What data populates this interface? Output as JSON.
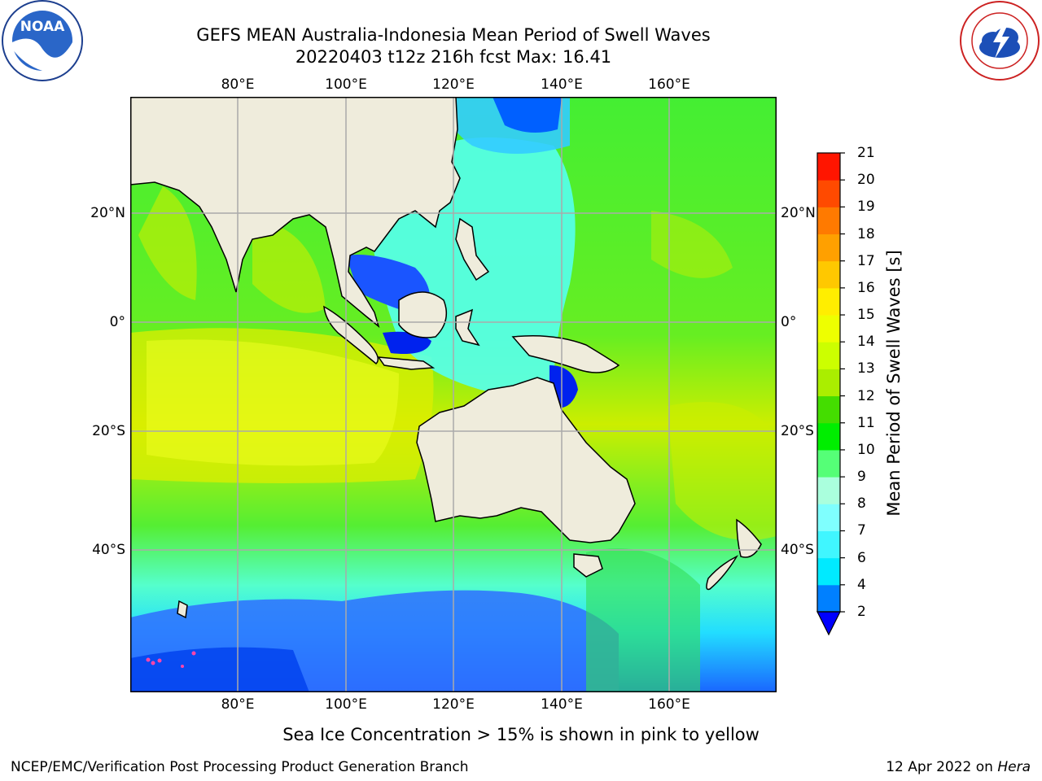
{
  "title": {
    "line1": "GEFS MEAN Australia-Indonesia Mean Period of Swell Waves",
    "line2": "20220403 t12z 216h fcst   Max: 16.41"
  },
  "logos": {
    "left": {
      "icon": "noaa-logo-icon",
      "text": "NOAA"
    },
    "right": {
      "icon": "nws-logo-icon"
    }
  },
  "map": {
    "longitude_ticks": [
      "80°E",
      "100°E",
      "120°E",
      "140°E",
      "160°E"
    ],
    "latitude_ticks": [
      "20°N",
      "0°",
      "20°S",
      "40°S"
    ],
    "colors": {
      "land": "#efecdc",
      "ocean_dominant": "#33ee33",
      "gridline": "#aaaaaa"
    }
  },
  "colorbar": {
    "title": "Mean Period of Swell Waves [s]",
    "labels": [
      "2",
      "4",
      "6",
      "7",
      "8",
      "9",
      "10",
      "11",
      "12",
      "13",
      "14",
      "15",
      "16",
      "17",
      "18",
      "19",
      "20",
      "21"
    ],
    "colors": [
      "#0040ff",
      "#0080ff",
      "#00eaff",
      "#40f6ff",
      "#7ffffe",
      "#aaffdd",
      "#55ff77",
      "#00ee00",
      "#44dd00",
      "#aaee00",
      "#ccff00",
      "#eeff00",
      "#ffee00",
      "#ffc800",
      "#ffa000",
      "#ff7a00",
      "#ff4a00",
      "#ff1500"
    ],
    "extend_color": "#0000ff"
  },
  "footer": {
    "note": "Sea Ice Concentration > 15% is shown in pink to yellow",
    "left": "NCEP/EMC/Verification Post Processing Product Generation Branch",
    "right_prefix": "12 Apr 2022 on ",
    "right_italic": "Hera"
  }
}
